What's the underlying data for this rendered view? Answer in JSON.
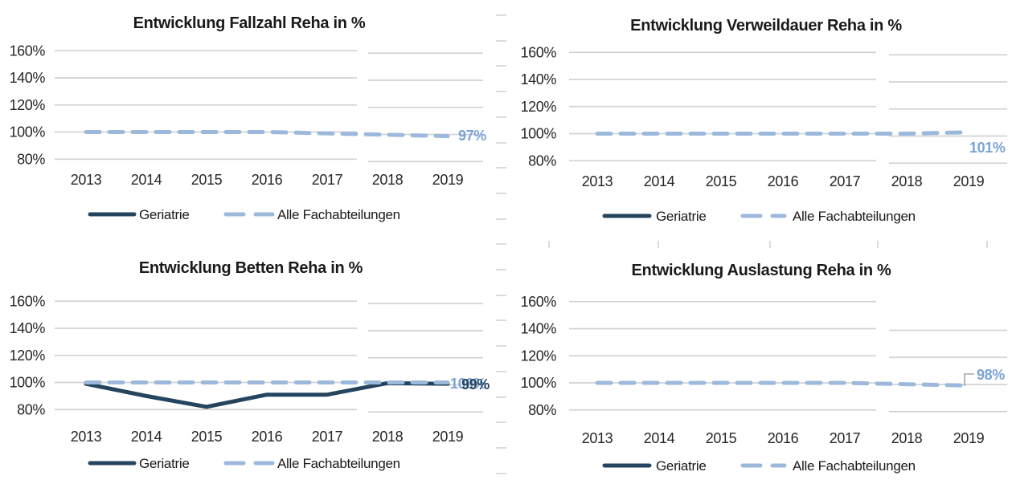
{
  "colors": {
    "geriatrie_navy": "#25455f",
    "alle_light_blue": "#9cb9dc",
    "end_label_blue": "#7ba3d6",
    "gridline_gray": "#d3d3d3",
    "leader_gray": "#a6a6a6",
    "axis_text": "#262626"
  },
  "legend": {
    "geriatrie": "Geriatrie",
    "alle": "Alle Fachabteilungen"
  },
  "chart_data": [
    {
      "id": "fallzahl",
      "type": "line",
      "title": "Entwicklung Fallzahl Reha in %",
      "categories": [
        "2013",
        "2014",
        "2015",
        "2016",
        "2017",
        "2018",
        "2019"
      ],
      "y_ticks": [
        "160%",
        "140%",
        "120%",
        "100%",
        "80%"
      ],
      "ylim": [
        80,
        160
      ],
      "grid": true,
      "legend_position": "bottom",
      "series": [
        {
          "name": "Geriatrie",
          "values": null
        },
        {
          "name": "Alle Fachabteilungen",
          "values": [
            100,
            100,
            100,
            100,
            99,
            98,
            97
          ]
        }
      ],
      "end_labels": [
        {
          "text": "97%",
          "series": "Alle Fachabteilungen"
        }
      ]
    },
    {
      "id": "verweildauer",
      "type": "line",
      "title": "Entwicklung Verweildauer Reha in %",
      "categories": [
        "2013",
        "2014",
        "2015",
        "2016",
        "2017",
        "2018",
        "2019"
      ],
      "y_ticks": [
        "160%",
        "140%",
        "120%",
        "100%",
        "80%"
      ],
      "ylim": [
        80,
        160
      ],
      "grid": true,
      "legend_position": "bottom",
      "series": [
        {
          "name": "Geriatrie",
          "values": null
        },
        {
          "name": "Alle Fachabteilungen",
          "values": [
            100,
            100,
            100,
            100,
            100,
            100,
            101
          ]
        }
      ],
      "end_labels": [
        {
          "text": "101%",
          "series": "Alle Fachabteilungen"
        }
      ]
    },
    {
      "id": "betten",
      "type": "line",
      "title": "Entwicklung Betten Reha in %",
      "categories": [
        "2013",
        "2014",
        "2015",
        "2016",
        "2017",
        "2018",
        "2019"
      ],
      "y_ticks": [
        "160%",
        "140%",
        "120%",
        "100%",
        "80%"
      ],
      "ylim": [
        80,
        160
      ],
      "grid": true,
      "legend_position": "bottom",
      "series": [
        {
          "name": "Geriatrie",
          "values": [
            99,
            90,
            82,
            91,
            91,
            99.5,
            99
          ]
        },
        {
          "name": "Alle Fachabteilungen",
          "values": [
            100,
            100,
            100,
            100,
            100,
            100,
            100
          ]
        }
      ],
      "end_labels": [
        {
          "text": "100%",
          "series": "Alle Fachabteilungen"
        },
        {
          "text": "99%",
          "series": "Geriatrie"
        }
      ]
    },
    {
      "id": "auslastung",
      "type": "line",
      "title": "Entwicklung Auslastung Reha in %",
      "categories": [
        "2013",
        "2014",
        "2015",
        "2016",
        "2017",
        "2018",
        "2019"
      ],
      "y_ticks": [
        "160%",
        "140%",
        "120%",
        "100%",
        "80%"
      ],
      "ylim": [
        80,
        160
      ],
      "grid": true,
      "legend_position": "bottom",
      "series": [
        {
          "name": "Geriatrie",
          "values": null
        },
        {
          "name": "Alle Fachabteilungen",
          "values": [
            100,
            100,
            100,
            100,
            100,
            99,
            98
          ]
        }
      ],
      "end_labels": [
        {
          "text": "98%",
          "series": "Alle Fachabteilungen",
          "callout": true
        }
      ]
    }
  ]
}
